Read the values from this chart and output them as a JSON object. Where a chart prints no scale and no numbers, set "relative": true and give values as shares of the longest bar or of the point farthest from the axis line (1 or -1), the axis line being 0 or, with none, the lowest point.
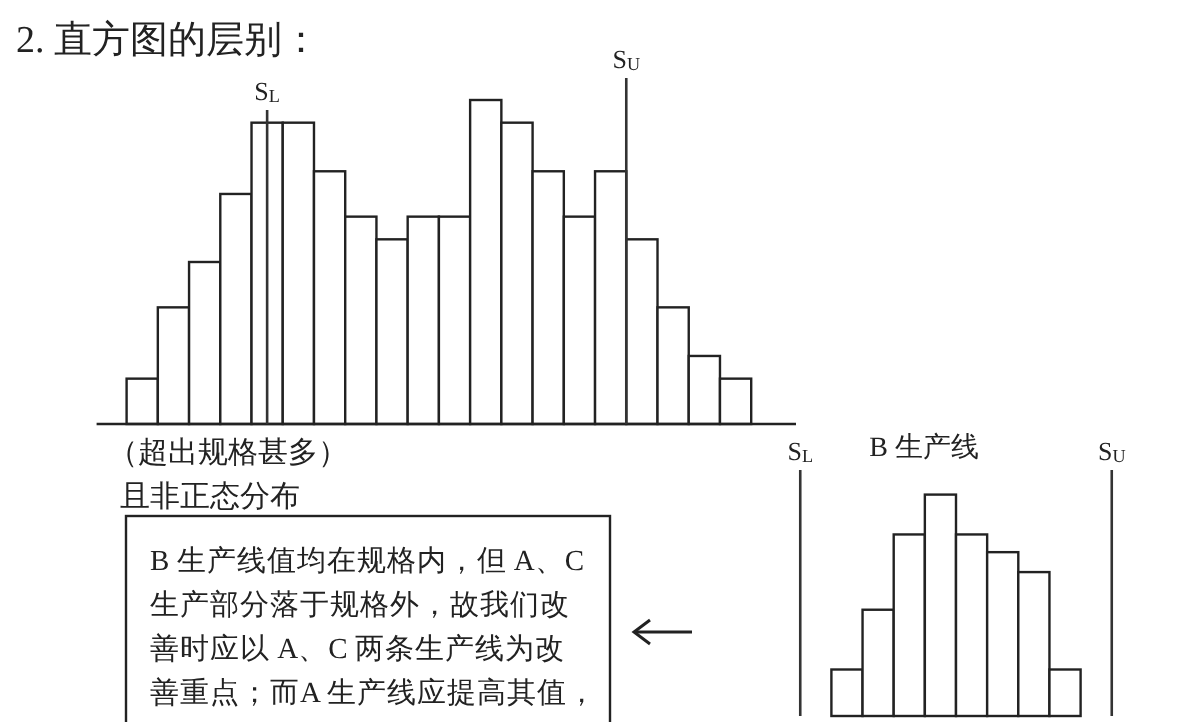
{
  "chart_data": [
    {
      "type": "bar",
      "title": "2. 直方图的层别：",
      "relative": true,
      "color": "#ffffff",
      "categories": [
        null,
        null,
        null,
        null,
        null,
        null,
        null,
        null,
        null,
        null,
        null,
        null,
        null,
        null,
        null,
        null,
        null,
        null,
        null,
        null
      ],
      "values": [
        0.14,
        0.36,
        0.5,
        0.71,
        0.93,
        0.93,
        0.78,
        0.64,
        0.57,
        0.64,
        0.64,
        1,
        0.93,
        0.78,
        0.64,
        0.78,
        0.57,
        0.36,
        0.21,
        0.14
      ],
      "annotations": [
        "S$_{L}$",
        "S$_{U}$",
        "（超出规格甚多）",
        "且非正态分布",
        "B 生产线值均在规格内，但 A、C生产部分落于规格外，故我们改善时应以 A、C 两条生产线为改善重点；而A 生产线应提高其值，"
      ]
    },
    {
      "type": "bar",
      "title": "B 生产线",
      "relative": true,
      "color": "#ffffff",
      "categories": [
        null,
        null,
        null,
        null,
        null,
        null,
        null,
        null
      ],
      "values": [
        0.21,
        0.48,
        0.82,
        1,
        0.82,
        0.74,
        0.65,
        0.21
      ],
      "annotations": [
        "S$_{L}$",
        "S$_{U}$"
      ]
    }
  ]
}
